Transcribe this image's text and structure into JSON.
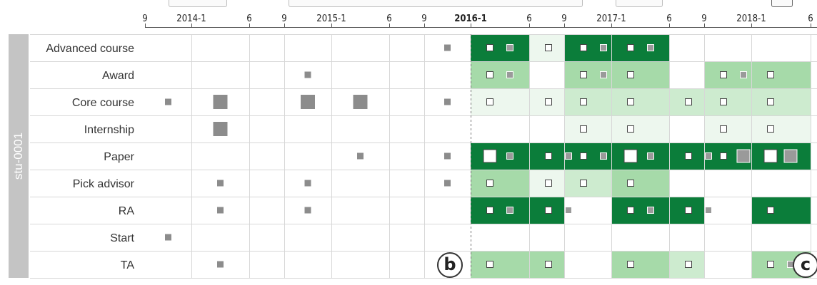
{
  "toolbar": {
    "controls": [
      "control-1",
      "control-2",
      "control-3",
      "control-4"
    ]
  },
  "group_label": "stu-0001",
  "time_axis": {
    "ticks": [
      {
        "id": 0,
        "label": "9",
        "bold": false
      },
      {
        "id": 1,
        "label": "2014-1",
        "bold": false
      },
      {
        "id": 2,
        "label": "6",
        "bold": false
      },
      {
        "id": 3,
        "label": "9",
        "bold": false
      },
      {
        "id": 4,
        "label": "2015-1",
        "bold": false
      },
      {
        "id": 5,
        "label": "6",
        "bold": false
      },
      {
        "id": 6,
        "label": "9",
        "bold": false
      },
      {
        "id": 7,
        "label": "2016-1",
        "bold": true
      },
      {
        "id": 8,
        "label": "6",
        "bold": false
      },
      {
        "id": 9,
        "label": "9",
        "bold": false
      },
      {
        "id": 10,
        "label": "2017-1",
        "bold": false
      },
      {
        "id": 11,
        "label": "6",
        "bold": false
      },
      {
        "id": 12,
        "label": "9",
        "bold": false
      },
      {
        "id": 13,
        "label": "2018-1",
        "bold": false
      },
      {
        "id": 14,
        "label": "6",
        "bold": false
      }
    ]
  },
  "rows": [
    "Advanced course",
    "Award",
    "Core course",
    "Internship",
    "Paper",
    "Pick advisor",
    "RA",
    "Start",
    "TA"
  ],
  "colors": {
    "dark_green": "#0b7d3a",
    "mid_green": "#a6daa9",
    "light_green": "#cdebcf",
    "pale_green": "#edf7ee",
    "grid": "#d7d7d7",
    "marker_gray": "#8c8c8c",
    "sidebar_gray": "#c4c4c4"
  },
  "shading": [
    {
      "row": 0,
      "cells": [
        [
          7,
          "dark"
        ],
        [
          8,
          "pale"
        ],
        [
          9,
          "dark"
        ],
        [
          10,
          "dark"
        ]
      ]
    },
    {
      "row": 1,
      "cells": [
        [
          7,
          "mid"
        ],
        [
          9,
          "mid"
        ],
        [
          10,
          "mid"
        ],
        [
          12,
          "mid"
        ],
        [
          13,
          "mid"
        ]
      ]
    },
    {
      "row": 2,
      "cells": [
        [
          7,
          "pale"
        ],
        [
          8,
          "pale"
        ],
        [
          9,
          "light"
        ],
        [
          10,
          "light"
        ],
        [
          11,
          "light"
        ],
        [
          12,
          "light"
        ],
        [
          13,
          "light"
        ]
      ]
    },
    {
      "row": 3,
      "cells": [
        [
          9,
          "pale"
        ],
        [
          10,
          "pale"
        ],
        [
          12,
          "pale"
        ],
        [
          13,
          "pale"
        ]
      ]
    },
    {
      "row": 4,
      "cells": [
        [
          7,
          "dark"
        ],
        [
          8,
          "dark"
        ],
        [
          9,
          "dark"
        ],
        [
          10,
          "dark"
        ],
        [
          11,
          "dark"
        ],
        [
          12,
          "dark"
        ],
        [
          13,
          "dark"
        ]
      ]
    },
    {
      "row": 5,
      "cells": [
        [
          7,
          "mid"
        ],
        [
          8,
          "pale"
        ],
        [
          9,
          "light"
        ],
        [
          10,
          "mid"
        ]
      ]
    },
    {
      "row": 6,
      "cells": [
        [
          7,
          "dark"
        ],
        [
          8,
          "dark"
        ],
        [
          10,
          "dark"
        ],
        [
          11,
          "dark"
        ],
        [
          13,
          "dark"
        ]
      ]
    },
    {
      "row": 8,
      "cells": [
        [
          7,
          "mid"
        ],
        [
          8,
          "mid"
        ],
        [
          10,
          "mid"
        ],
        [
          11,
          "light"
        ],
        [
          13,
          "mid"
        ]
      ]
    }
  ],
  "pre_events": [
    {
      "row": 0,
      "cell": 6,
      "size": "s"
    },
    {
      "row": 1,
      "cell": 3,
      "size": "s"
    },
    {
      "row": 2,
      "cell": 0,
      "size": "s"
    },
    {
      "row": 2,
      "cell": 1,
      "size": "l"
    },
    {
      "row": 2,
      "cell": 3,
      "size": "l"
    },
    {
      "row": 2,
      "cell": 4,
      "size": "l"
    },
    {
      "row": 2,
      "cell": 6,
      "size": "s"
    },
    {
      "row": 3,
      "cell": 1,
      "size": "l"
    },
    {
      "row": 4,
      "cell": 4,
      "size": "s"
    },
    {
      "row": 4,
      "cell": 6,
      "size": "s"
    },
    {
      "row": 5,
      "cell": 1,
      "size": "s"
    },
    {
      "row": 5,
      "cell": 3,
      "size": "s"
    },
    {
      "row": 5,
      "cell": 6,
      "size": "s"
    },
    {
      "row": 6,
      "cell": 1,
      "size": "s"
    },
    {
      "row": 6,
      "cell": 3,
      "size": "s"
    },
    {
      "row": 7,
      "cell": 0,
      "size": "s"
    },
    {
      "row": 8,
      "cell": 1,
      "size": "s"
    }
  ],
  "glyph_pairs": [
    {
      "row": 0,
      "cell": 7,
      "a": "s",
      "b": "s"
    },
    {
      "row": 0,
      "cell": 8,
      "a": "s",
      "b": ""
    },
    {
      "row": 0,
      "cell": 9,
      "a": "s",
      "b": "s"
    },
    {
      "row": 0,
      "cell": 10,
      "a": "s",
      "b": "s"
    },
    {
      "row": 1,
      "cell": 7,
      "a": "s",
      "b": "s"
    },
    {
      "row": 1,
      "cell": 9,
      "a": "s",
      "b": "s"
    },
    {
      "row": 1,
      "cell": 10,
      "a": "s",
      "b": ""
    },
    {
      "row": 1,
      "cell": 12,
      "a": "s",
      "b": "s"
    },
    {
      "row": 1,
      "cell": 13,
      "a": "s",
      "b": ""
    },
    {
      "row": 2,
      "cell": 7,
      "a": "s",
      "b": ""
    },
    {
      "row": 2,
      "cell": 8,
      "a": "s",
      "b": ""
    },
    {
      "row": 2,
      "cell": 9,
      "a": "s",
      "b": ""
    },
    {
      "row": 2,
      "cell": 10,
      "a": "s",
      "b": ""
    },
    {
      "row": 2,
      "cell": 11,
      "a": "s",
      "b": ""
    },
    {
      "row": 2,
      "cell": 12,
      "a": "s",
      "b": ""
    },
    {
      "row": 2,
      "cell": 13,
      "a": "s",
      "b": ""
    },
    {
      "row": 3,
      "cell": 9,
      "a": "s",
      "b": ""
    },
    {
      "row": 3,
      "cell": 10,
      "a": "s",
      "b": ""
    },
    {
      "row": 3,
      "cell": 12,
      "a": "s",
      "b": ""
    },
    {
      "row": 3,
      "cell": 13,
      "a": "s",
      "b": ""
    },
    {
      "row": 4,
      "cell": 7,
      "a": "l",
      "b": "s"
    },
    {
      "row": 4,
      "cell": 8,
      "a": "s",
      "b": "s"
    },
    {
      "row": 4,
      "cell": 9,
      "a": "s",
      "b": "s"
    },
    {
      "row": 4,
      "cell": 10,
      "a": "l",
      "b": "s"
    },
    {
      "row": 4,
      "cell": 11,
      "a": "s",
      "b": "s"
    },
    {
      "row": 4,
      "cell": 12,
      "a": "s",
      "b": "l"
    },
    {
      "row": 4,
      "cell": 13,
      "a": "l",
      "b": "l"
    },
    {
      "row": 5,
      "cell": 7,
      "a": "s",
      "b": ""
    },
    {
      "row": 5,
      "cell": 8,
      "a": "s",
      "b": ""
    },
    {
      "row": 5,
      "cell": 9,
      "a": "s",
      "b": ""
    },
    {
      "row": 5,
      "cell": 10,
      "a": "s",
      "b": ""
    },
    {
      "row": 6,
      "cell": 7,
      "a": "s",
      "b": "s"
    },
    {
      "row": 6,
      "cell": 8,
      "a": "s",
      "b": "s"
    },
    {
      "row": 6,
      "cell": 10,
      "a": "s",
      "b": "s"
    },
    {
      "row": 6,
      "cell": 11,
      "a": "s",
      "b": "s"
    },
    {
      "row": 6,
      "cell": 13,
      "a": "s",
      "b": ""
    },
    {
      "row": 8,
      "cell": 7,
      "a": "s",
      "b": ""
    },
    {
      "row": 8,
      "cell": 8,
      "a": "s",
      "b": ""
    },
    {
      "row": 8,
      "cell": 10,
      "a": "s",
      "b": ""
    },
    {
      "row": 8,
      "cell": 11,
      "a": "s",
      "b": ""
    },
    {
      "row": 8,
      "cell": 13,
      "a": "s",
      "b": "s"
    }
  ],
  "callouts": [
    {
      "id": "b",
      "label": "b"
    },
    {
      "id": "c",
      "label": "c"
    }
  ]
}
